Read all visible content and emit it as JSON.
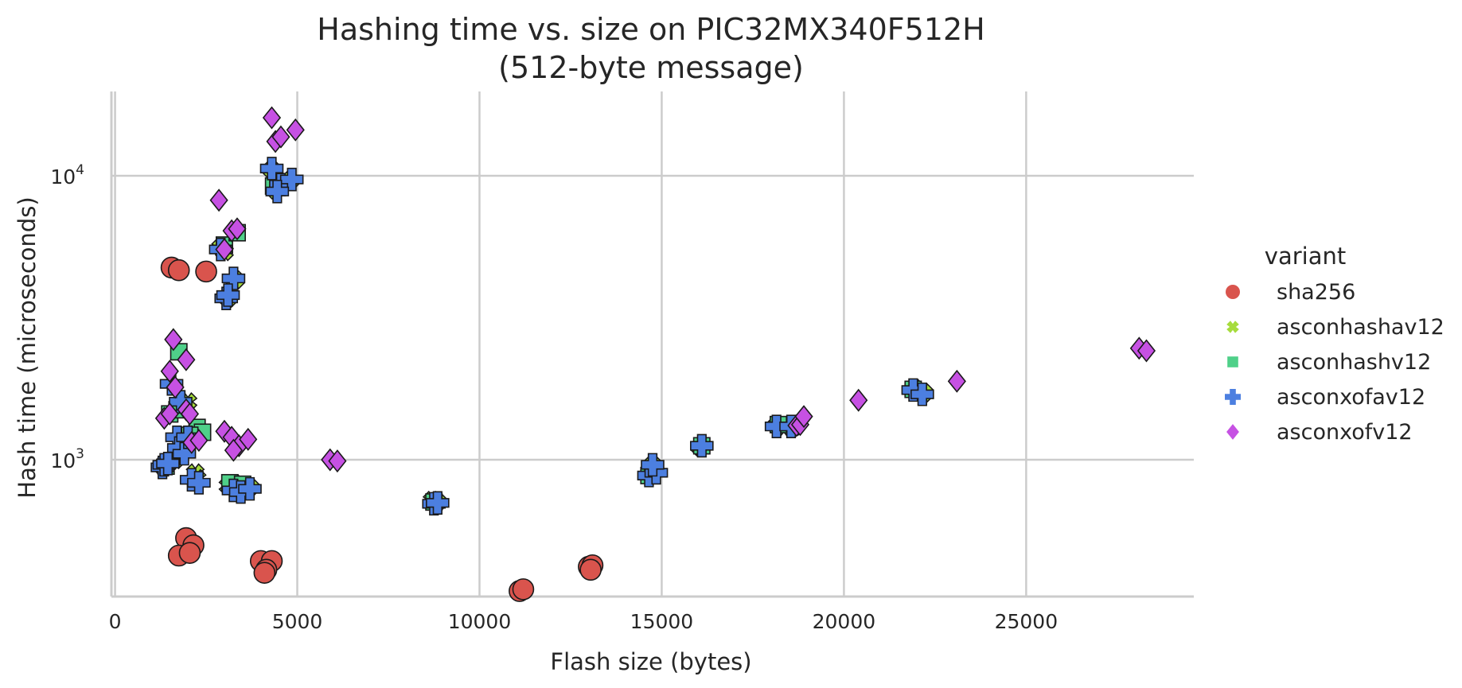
{
  "chart_data": {
    "type": "scatter",
    "title": "Hashing time vs. size on PIC32MX340F512H",
    "subtitle": "(512-byte message)",
    "xlabel": "Flash size (bytes)",
    "ylabel": "Hash time (microseconds)",
    "xlim": [
      -100,
      29600
    ],
    "ylim": [
      330,
      19800
    ],
    "yscale": "log",
    "x_ticks": [
      0,
      5000,
      10000,
      15000,
      20000,
      25000
    ],
    "x_tick_labels": [
      "0",
      "5000",
      "10000",
      "15000",
      "20000",
      "25000"
    ],
    "y_ticks": [
      1000,
      10000
    ],
    "y_tick_labels": [
      {
        "base": "10",
        "exp": "3"
      },
      {
        "base": "10",
        "exp": "4"
      }
    ],
    "grid": true,
    "legend": {
      "title": "variant",
      "placement": "right"
    },
    "series": [
      {
        "name": "sha256",
        "color": "#d9544d",
        "marker": "circle",
        "points": [
          [
            1550,
            4750
          ],
          [
            1750,
            4650
          ],
          [
            2500,
            4600
          ],
          [
            1950,
            530
          ],
          [
            2150,
            500
          ],
          [
            1750,
            460
          ],
          [
            2050,
            470
          ],
          [
            4000,
            440
          ],
          [
            4300,
            440
          ],
          [
            4150,
            410
          ],
          [
            4100,
            400
          ],
          [
            11100,
            345
          ],
          [
            11200,
            350
          ],
          [
            13000,
            420
          ],
          [
            13100,
            425
          ],
          [
            13050,
            410
          ]
        ]
      },
      {
        "name": "asconhashav12",
        "color": "#a6dc3c",
        "marker": "x",
        "points": [
          [
            1300,
            950
          ],
          [
            1400,
            960
          ],
          [
            1500,
            980
          ],
          [
            1650,
            1000
          ],
          [
            2200,
            900
          ],
          [
            2250,
            860
          ],
          [
            3100,
            810
          ],
          [
            3300,
            820
          ],
          [
            3700,
            800
          ],
          [
            2000,
            1600
          ],
          [
            1800,
            1550
          ],
          [
            2900,
            5600
          ],
          [
            3000,
            5400
          ],
          [
            3300,
            4300
          ],
          [
            3100,
            3700
          ],
          [
            4400,
            8900
          ],
          [
            4300,
            10500
          ],
          [
            4800,
            9600
          ],
          [
            8700,
            720
          ],
          [
            8850,
            710
          ],
          [
            14700,
            900
          ],
          [
            14750,
            960
          ],
          [
            16050,
            1110
          ],
          [
            18150,
            1320
          ],
          [
            18350,
            1300
          ],
          [
            18650,
            1310
          ],
          [
            21950,
            1780
          ],
          [
            22200,
            1720
          ]
        ]
      },
      {
        "name": "asconhashv12",
        "color": "#4fd089",
        "marker": "square",
        "points": [
          [
            1750,
            2400
          ],
          [
            2250,
            1300
          ],
          [
            2400,
            1250
          ],
          [
            1500,
            1450
          ],
          [
            1700,
            1500
          ],
          [
            2050,
            1220
          ],
          [
            3000,
            5700
          ],
          [
            3350,
            6300
          ],
          [
            1400,
            950
          ],
          [
            3150,
            830
          ],
          [
            3500,
            820
          ],
          [
            4350,
            9200
          ],
          [
            8750,
            710
          ],
          [
            14650,
            880
          ],
          [
            16100,
            1120
          ],
          [
            18200,
            1330
          ],
          [
            21900,
            1770
          ]
        ]
      },
      {
        "name": "asconxofav12",
        "color": "#4c7fe0",
        "marker": "plus",
        "points": [
          [
            1300,
            940
          ],
          [
            1350,
            960
          ],
          [
            1450,
            970
          ],
          [
            1700,
            1200
          ],
          [
            1750,
            1100
          ],
          [
            1900,
            1050
          ],
          [
            2100,
            850
          ],
          [
            2300,
            830
          ],
          [
            3250,
            780
          ],
          [
            3450,
            770
          ],
          [
            3700,
            790
          ],
          [
            1550,
            1850
          ],
          [
            1800,
            1600
          ],
          [
            2900,
            5500
          ],
          [
            3250,
            4350
          ],
          [
            3050,
            3700
          ],
          [
            3100,
            3800
          ],
          [
            4300,
            10600
          ],
          [
            4550,
            9300
          ],
          [
            4850,
            9700
          ],
          [
            4450,
            8800
          ],
          [
            8750,
            700
          ],
          [
            8850,
            705
          ],
          [
            14650,
            880
          ],
          [
            14850,
            900
          ],
          [
            14750,
            960
          ],
          [
            16100,
            1120
          ],
          [
            18150,
            1310
          ],
          [
            18550,
            1310
          ],
          [
            21900,
            1760
          ],
          [
            22150,
            1700
          ],
          [
            2000,
            1200
          ]
        ]
      },
      {
        "name": "asconxofv12",
        "color": "#c651e3",
        "marker": "diamond",
        "points": [
          [
            4300,
            16000
          ],
          [
            4950,
            14500
          ],
          [
            4400,
            13200
          ],
          [
            4550,
            13700
          ],
          [
            2850,
            8200
          ],
          [
            3200,
            6400
          ],
          [
            3350,
            6500
          ],
          [
            3000,
            5500
          ],
          [
            1600,
            2650
          ],
          [
            1950,
            2250
          ],
          [
            1500,
            2050
          ],
          [
            1650,
            1800
          ],
          [
            1350,
            1400
          ],
          [
            1500,
            1450
          ],
          [
            1950,
            1500
          ],
          [
            2050,
            1450
          ],
          [
            2100,
            1150
          ],
          [
            2300,
            1170
          ],
          [
            3000,
            1260
          ],
          [
            3200,
            1200
          ],
          [
            3400,
            1120
          ],
          [
            3650,
            1180
          ],
          [
            5900,
            1000
          ],
          [
            6100,
            990
          ],
          [
            18700,
            1320
          ],
          [
            18800,
            1330
          ],
          [
            18900,
            1420
          ],
          [
            20400,
            1620
          ],
          [
            23100,
            1890
          ],
          [
            28100,
            2470
          ],
          [
            28300,
            2420
          ],
          [
            3250,
            1080
          ]
        ]
      }
    ]
  }
}
